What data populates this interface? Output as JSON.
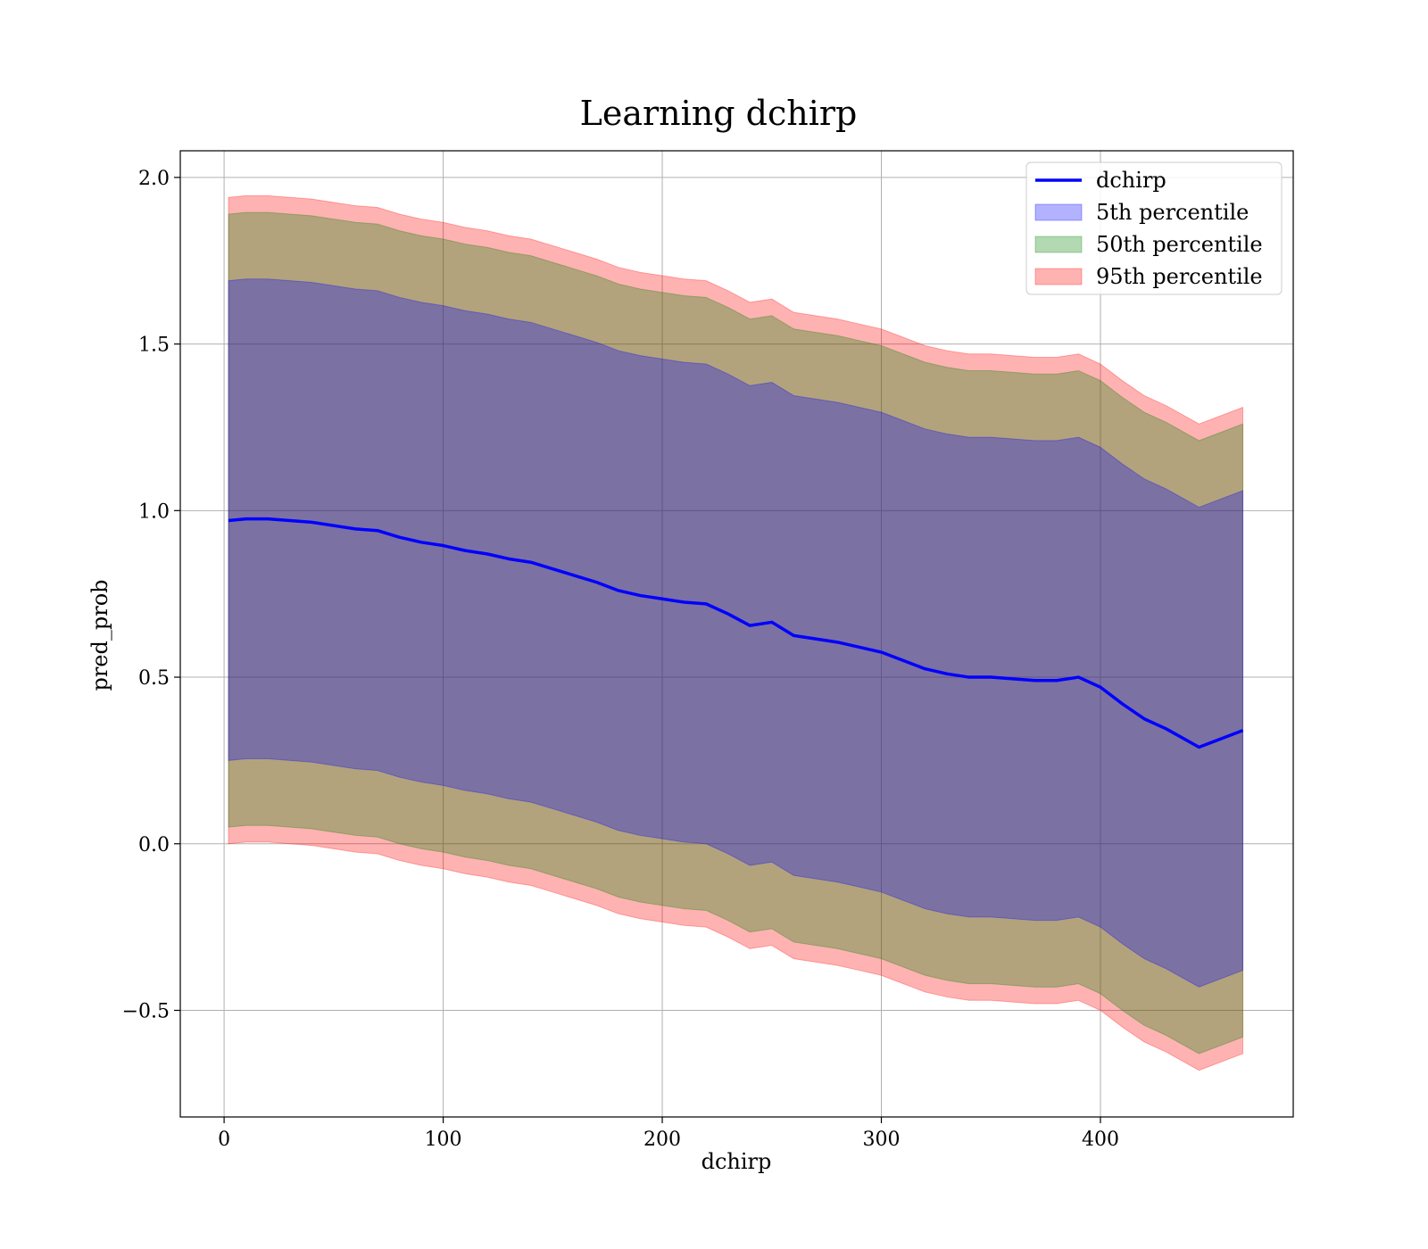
{
  "chart_data": {
    "type": "area",
    "title": "Learning dchirp",
    "xlabel": "dchirp",
    "ylabel": "pred_prob",
    "xlim": [
      -20,
      488
    ],
    "ylim": [
      -0.82,
      2.08
    ],
    "xticks": [
      0,
      100,
      200,
      300,
      400
    ],
    "yticks": [
      -0.5,
      0.0,
      0.5,
      1.0,
      1.5,
      2.0
    ],
    "xtick_labels": [
      "0",
      "100",
      "200",
      "300",
      "400"
    ],
    "ytick_labels": [
      "−0.5",
      "0.0",
      "0.5",
      "1.0",
      "1.5",
      "2.0"
    ],
    "grid": true,
    "legend_position": "top-right",
    "legend": [
      {
        "label": "dchirp",
        "kind": "line",
        "color": "#0000ff"
      },
      {
        "label": "5th percentile",
        "kind": "patch",
        "color": "#0000ff"
      },
      {
        "label": "50th percentile",
        "kind": "patch",
        "color": "#008000"
      },
      {
        "label": "95th percentile",
        "kind": "patch",
        "color": "#ff0000"
      }
    ],
    "colors": {
      "line": "#0000ff",
      "band_5th": "#0000ff",
      "band_50th": "#008000",
      "band_95th": "#ff0000",
      "band_alpha": 0.3
    },
    "x": [
      2,
      10,
      20,
      30,
      40,
      50,
      60,
      70,
      80,
      90,
      100,
      110,
      120,
      130,
      140,
      150,
      160,
      170,
      180,
      190,
      200,
      210,
      220,
      230,
      240,
      250,
      260,
      270,
      280,
      290,
      300,
      310,
      320,
      330,
      340,
      350,
      360,
      370,
      380,
      390,
      400,
      410,
      420,
      430,
      445,
      465
    ],
    "series": [
      {
        "name": "dchirp",
        "type": "line",
        "values": [
          0.97,
          0.975,
          0.975,
          0.97,
          0.965,
          0.955,
          0.945,
          0.94,
          0.92,
          0.905,
          0.895,
          0.88,
          0.87,
          0.855,
          0.845,
          0.825,
          0.805,
          0.785,
          0.76,
          0.745,
          0.735,
          0.725,
          0.72,
          0.69,
          0.655,
          0.665,
          0.625,
          0.615,
          0.605,
          0.59,
          0.575,
          0.55,
          0.525,
          0.51,
          0.5,
          0.5,
          0.495,
          0.49,
          0.49,
          0.5,
          0.47,
          0.42,
          0.375,
          0.345,
          0.29,
          0.34
        ]
      },
      {
        "name": "5th percentile",
        "type": "band",
        "lower": [
          0.25,
          0.255,
          0.255,
          0.25,
          0.245,
          0.235,
          0.225,
          0.22,
          0.2,
          0.185,
          0.175,
          0.16,
          0.15,
          0.135,
          0.125,
          0.105,
          0.085,
          0.065,
          0.04,
          0.025,
          0.015,
          0.005,
          0.0,
          -0.03,
          -0.065,
          -0.055,
          -0.095,
          -0.105,
          -0.115,
          -0.13,
          -0.145,
          -0.17,
          -0.195,
          -0.21,
          -0.22,
          -0.22,
          -0.225,
          -0.23,
          -0.23,
          -0.22,
          -0.25,
          -0.3,
          -0.345,
          -0.375,
          -0.43,
          -0.38
        ],
        "upper": [
          1.69,
          1.695,
          1.695,
          1.69,
          1.685,
          1.675,
          1.665,
          1.66,
          1.64,
          1.625,
          1.615,
          1.6,
          1.59,
          1.575,
          1.565,
          1.545,
          1.525,
          1.505,
          1.48,
          1.465,
          1.455,
          1.445,
          1.44,
          1.41,
          1.375,
          1.385,
          1.345,
          1.335,
          1.325,
          1.31,
          1.295,
          1.27,
          1.245,
          1.23,
          1.22,
          1.22,
          1.215,
          1.21,
          1.21,
          1.22,
          1.19,
          1.14,
          1.095,
          1.065,
          1.01,
          1.06
        ]
      },
      {
        "name": "50th percentile",
        "type": "band",
        "lower": [
          0.05,
          0.055,
          0.055,
          0.05,
          0.045,
          0.035,
          0.025,
          0.02,
          0.0,
          -0.015,
          -0.025,
          -0.04,
          -0.05,
          -0.065,
          -0.075,
          -0.095,
          -0.115,
          -0.135,
          -0.16,
          -0.175,
          -0.185,
          -0.195,
          -0.2,
          -0.23,
          -0.265,
          -0.255,
          -0.295,
          -0.305,
          -0.315,
          -0.33,
          -0.345,
          -0.37,
          -0.395,
          -0.41,
          -0.42,
          -0.42,
          -0.425,
          -0.43,
          -0.43,
          -0.42,
          -0.45,
          -0.5,
          -0.545,
          -0.575,
          -0.63,
          -0.58
        ],
        "upper": [
          1.89,
          1.895,
          1.895,
          1.89,
          1.885,
          1.875,
          1.865,
          1.86,
          1.84,
          1.825,
          1.815,
          1.8,
          1.79,
          1.775,
          1.765,
          1.745,
          1.725,
          1.705,
          1.68,
          1.665,
          1.655,
          1.645,
          1.64,
          1.61,
          1.575,
          1.585,
          1.545,
          1.535,
          1.525,
          1.51,
          1.495,
          1.47,
          1.445,
          1.43,
          1.42,
          1.42,
          1.415,
          1.41,
          1.41,
          1.42,
          1.39,
          1.34,
          1.295,
          1.265,
          1.21,
          1.26
        ]
      },
      {
        "name": "95th percentile",
        "type": "band",
        "lower": [
          0.0,
          0.005,
          0.005,
          0.0,
          -0.005,
          -0.015,
          -0.025,
          -0.03,
          -0.05,
          -0.065,
          -0.075,
          -0.09,
          -0.1,
          -0.115,
          -0.125,
          -0.145,
          -0.165,
          -0.185,
          -0.21,
          -0.225,
          -0.235,
          -0.245,
          -0.25,
          -0.28,
          -0.315,
          -0.305,
          -0.345,
          -0.355,
          -0.365,
          -0.38,
          -0.395,
          -0.42,
          -0.445,
          -0.46,
          -0.47,
          -0.47,
          -0.475,
          -0.48,
          -0.48,
          -0.47,
          -0.5,
          -0.55,
          -0.595,
          -0.625,
          -0.68,
          -0.63
        ],
        "upper": [
          1.94,
          1.945,
          1.945,
          1.94,
          1.935,
          1.925,
          1.915,
          1.91,
          1.89,
          1.875,
          1.865,
          1.85,
          1.84,
          1.825,
          1.815,
          1.795,
          1.775,
          1.755,
          1.73,
          1.715,
          1.705,
          1.695,
          1.69,
          1.66,
          1.625,
          1.635,
          1.595,
          1.585,
          1.575,
          1.56,
          1.545,
          1.52,
          1.495,
          1.48,
          1.47,
          1.47,
          1.465,
          1.46,
          1.46,
          1.47,
          1.44,
          1.39,
          1.345,
          1.315,
          1.26,
          1.31
        ]
      }
    ]
  }
}
